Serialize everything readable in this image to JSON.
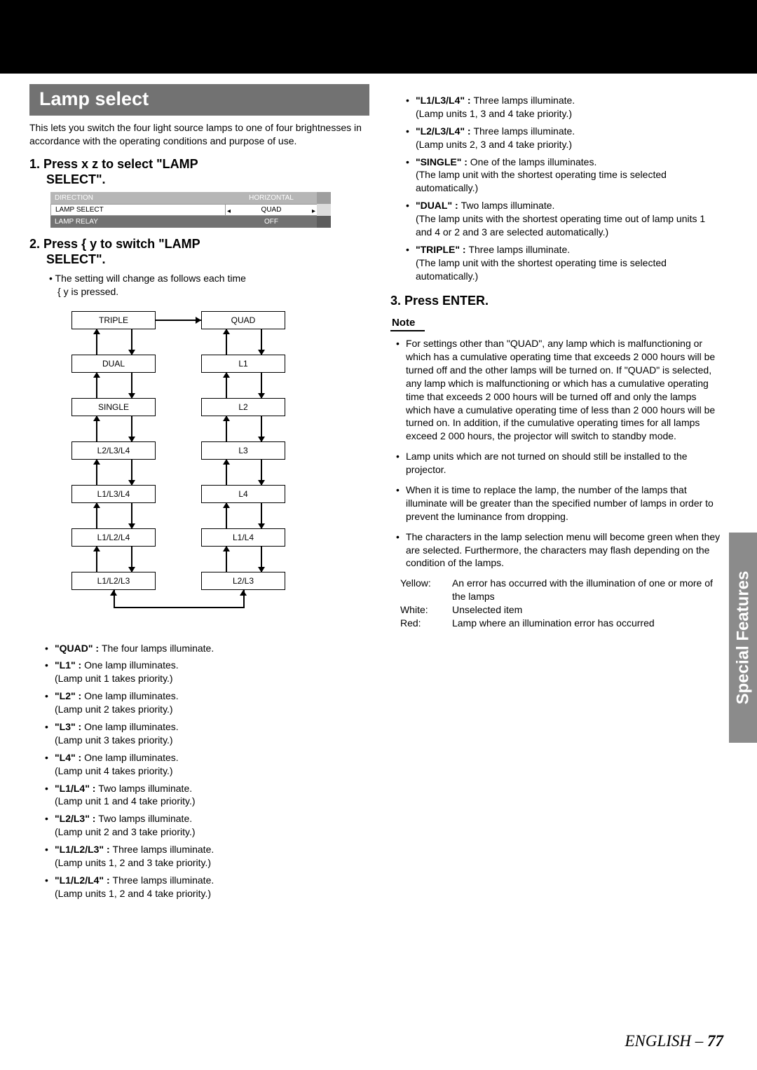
{
  "section_title": "Lamp select",
  "intro": "This lets you switch the four light source lamps to one of four brightnesses in accordance with the operating conditions and purpose of use.",
  "step1_pre": "1.  Press  ",
  "step1_keys": "x z",
  "step1_post": "  to select \"LAMP",
  "step1_line2": "SELECT\".",
  "menu": [
    {
      "l": "DIRECTION",
      "r": "HORIZONTAL"
    },
    {
      "l": "LAMP SELECT",
      "r": "QUAD"
    },
    {
      "l": "LAMP RELAY",
      "r": "OFF"
    }
  ],
  "step2_pre": "2.  Press  ",
  "step2_keys": "{ y",
  "step2_post": "  to switch \"LAMP",
  "step2_line2": "SELECT\".",
  "step2_sub_a": "The setting will change as follows each time ",
  "step2_sub_b": "{ y",
  "step2_sub_c": "  is pressed.",
  "left_boxes": [
    "TRIPLE",
    "DUAL",
    "SINGLE",
    "L2/L3/L4",
    "L1/L3/L4",
    "L1/L2/L4",
    "L1/L2/L3"
  ],
  "right_boxes": [
    "QUAD",
    "L1",
    "L2",
    "L3",
    "L4",
    "L1/L4",
    "L2/L3"
  ],
  "defs_left": [
    {
      "k": "\"QUAD\" : ",
      "v": "The four lamps illuminate."
    },
    {
      "k": "\"L1\" : ",
      "v": "One lamp illuminates.",
      "v2": "(Lamp unit 1 takes priority.)"
    },
    {
      "k": "\"L2\" : ",
      "v": "One lamp illuminates.",
      "v2": "(Lamp unit 2 takes priority.)"
    },
    {
      "k": "\"L3\" : ",
      "v": "One lamp illuminates.",
      "v2": "(Lamp unit 3 takes priority.)"
    },
    {
      "k": "\"L4\" : ",
      "v": "One lamp illuminates.",
      "v2": "(Lamp unit 4 takes priority.)"
    },
    {
      "k": "\"L1/L4\" : ",
      "v": "Two lamps illuminate.",
      "v2": "(Lamp unit 1 and 4 take priority.)"
    },
    {
      "k": "\"L2/L3\" : ",
      "v": "Two lamps illuminate.",
      "v2": "(Lamp unit 2 and 3 take priority.)"
    },
    {
      "k": "\"L1/L2/L3\" : ",
      "v": "Three lamps illuminate.",
      "v2": "(Lamp units 1, 2 and 3 take priority.)"
    },
    {
      "k": "\"L1/L2/L4\" : ",
      "v": "Three lamps illuminate.",
      "v2": "(Lamp units 1, 2 and 4 take priority.)"
    }
  ],
  "defs_right": [
    {
      "k": "\"L1/L3/L4\" : ",
      "v": "Three lamps illuminate.",
      "v2": "(Lamp units 1, 3 and 4 take priority.)"
    },
    {
      "k": "\"L2/L3/L4\" : ",
      "v": "Three lamps illuminate.",
      "v2": "(Lamp units 2, 3 and 4 take priority.)"
    },
    {
      "k": "\"SINGLE\" : ",
      "v": "One of the lamps illuminates.",
      "v2": "(The lamp unit with the shortest operating time is selected automatically.)"
    },
    {
      "k": "\"DUAL\" : ",
      "v": "Two lamps illuminate.",
      "v2": "(The lamp units with the shortest operating time out of lamp units 1 and 4 or 2 and 3 are selected automatically.)"
    },
    {
      "k": "\"TRIPLE\" : ",
      "v": "Three lamps illuminate.",
      "v2": "(The lamp unit with the shortest operating time is selected automatically.)"
    }
  ],
  "step3": "3.  Press ENTER.",
  "note_label": "Note",
  "notes": [
    "For settings other than \"QUAD\", any lamp which is malfunctioning or which has a cumulative operating time that exceeds 2 000 hours will be turned off and the other lamps will be turned on. If \"QUAD\" is selected, any lamp which is malfunctioning or which has a cumulative operating time that exceeds 2 000 hours will be turned off and only the lamps which have a cumulative operating time of less than 2 000 hours will be turned on.  In addition, if the cumulative operating times for all lamps exceed 2 000 hours, the projector will switch to standby mode.",
    "Lamp units which are not turned on should still be installed to the projector.",
    "When it is time to replace the lamp, the number of the lamps that illuminate will be greater than the specified number of lamps in order to prevent the luminance from dropping.",
    "The characters in the lamp selection menu will become green when they are selected. Furthermore, the characters may flash depending on the condition of the lamps."
  ],
  "colors": [
    {
      "c": "Yellow:",
      "d": "An error has occurred with the illumination of one or more of the lamps"
    },
    {
      "c": "White:",
      "d": "Unselected item"
    },
    {
      "c": "Red:",
      "d": "Lamp where an illumination error has occurred"
    }
  ],
  "side_tab": "Special Features",
  "footer_a": "ENGLISH – ",
  "footer_b": "77"
}
